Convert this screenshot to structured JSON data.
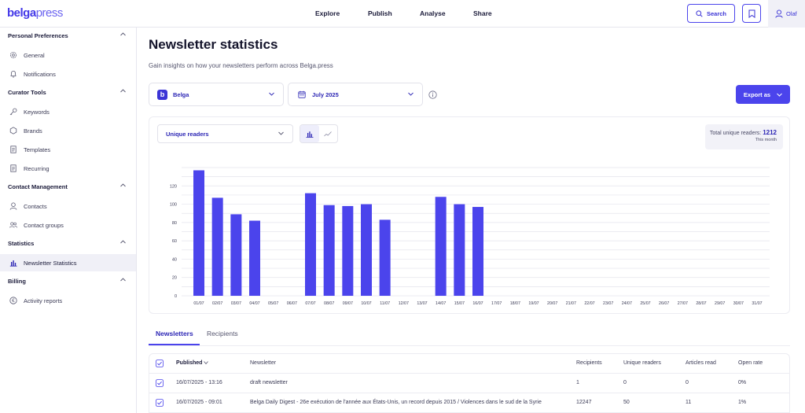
{
  "header": {
    "logo_main": "belga",
    "logo_sub": "press",
    "nav": [
      {
        "label": "Explore"
      },
      {
        "label": "Publish"
      },
      {
        "label": "Analyse"
      },
      {
        "label": "Share"
      }
    ],
    "search_label": "Search",
    "user_name": "Olaf"
  },
  "sidebar": {
    "sections": [
      {
        "title": "Personal Preferences",
        "items": [
          {
            "label": "General",
            "icon": "gear-icon"
          },
          {
            "label": "Notifications",
            "icon": "bell-icon"
          }
        ]
      },
      {
        "title": "Curator Tools",
        "items": [
          {
            "label": "Keywords",
            "icon": "key-icon"
          },
          {
            "label": "Brands",
            "icon": "hexagon-icon"
          },
          {
            "label": "Templates",
            "icon": "document-icon"
          },
          {
            "label": "Recurring",
            "icon": "document-icon"
          }
        ]
      },
      {
        "title": "Contact Management",
        "items": [
          {
            "label": "Contacts",
            "icon": "user-icon"
          },
          {
            "label": "Contact groups",
            "icon": "users-icon"
          }
        ]
      },
      {
        "title": "Statistics",
        "items": [
          {
            "label": "Newsletter Statistics",
            "icon": "bar-chart-icon",
            "active": true
          }
        ]
      },
      {
        "title": "Billing",
        "items": [
          {
            "label": "Activity reports",
            "icon": "euro-icon"
          }
        ]
      }
    ]
  },
  "main": {
    "title": "Newsletter statistics",
    "subtitle": "Gain insights on how your newsletters perform across Belga.press",
    "brand_select": "Belga",
    "date_select": "July 2025",
    "export_label": "Export as",
    "metric_select": "Unique readers",
    "total_label": "Total unique readers:",
    "total_value": "1212",
    "total_period": "This month",
    "tabs": [
      {
        "label": "Newsletters",
        "active": true
      },
      {
        "label": "Recipients"
      }
    ],
    "table": {
      "columns": [
        "Published",
        "Newsletter",
        "Recipients",
        "Unique readers",
        "Articles read",
        "Open rate"
      ],
      "rows": [
        [
          "16/07/2025 - 13:16",
          "draft newsletter",
          "1",
          "0",
          "0",
          "0%"
        ],
        [
          "16/07/2025 - 09:01",
          "Belga Daily Digest - 26e exécution de l'année aux États-Unis, un record depuis 2015 / Violences dans le sud de la Syrie",
          "12247",
          "50",
          "11",
          "1%"
        ]
      ]
    }
  },
  "colors": {
    "accent": "#4b44ec",
    "bar": "#4b44ec",
    "grid": "#e4e4ec"
  },
  "chart_data": {
    "type": "bar",
    "categories": [
      "01/07",
      "02/07",
      "03/07",
      "04/07",
      "05/07",
      "06/07",
      "07/07",
      "08/07",
      "09/07",
      "10/07",
      "11/07",
      "12/07",
      "13/07",
      "14/07",
      "15/07",
      "16/07",
      "17/07",
      "18/07",
      "19/07",
      "20/07",
      "21/07",
      "22/07",
      "23/07",
      "24/07",
      "25/07",
      "26/07",
      "27/07",
      "28/07",
      "29/07",
      "30/07",
      "31/07"
    ],
    "values": [
      137,
      107,
      89,
      82,
      0,
      0,
      112,
      99,
      98,
      100,
      83,
      0,
      0,
      108,
      100,
      97,
      0,
      0,
      0,
      0,
      0,
      0,
      0,
      0,
      0,
      0,
      0,
      0,
      0,
      0,
      0
    ],
    "yticks": [
      0,
      20,
      40,
      60,
      80,
      100,
      120
    ],
    "ylim": [
      0,
      140
    ],
    "grid": true
  }
}
